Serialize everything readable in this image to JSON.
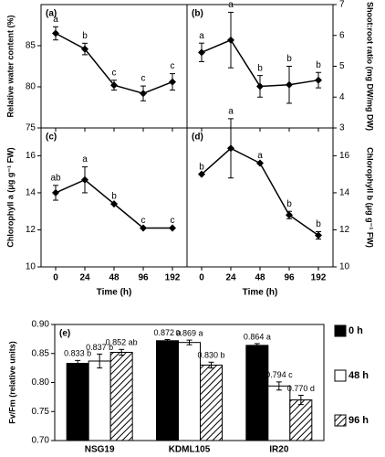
{
  "chart_data": [
    {
      "type": "line",
      "panel": "(a)",
      "y_label": "Relative water content (%)",
      "values": [
        86.5,
        84.6,
        80.2,
        79.2,
        80.6
      ],
      "errors": [
        0.8,
        0.7,
        0.6,
        0.9,
        1.0
      ],
      "letters": [
        "a",
        "b",
        "c",
        "c",
        "c"
      ],
      "ylim": [
        75,
        90
      ],
      "yticks": [
        75,
        80,
        85
      ],
      "axis_side": "left",
      "color": "#000000"
    },
    {
      "type": "line",
      "panel": "(b)",
      "y_label": "Shoot:root ratio (mg DW/mg DW)",
      "values": [
        5.45,
        5.85,
        4.35,
        4.4,
        4.55
      ],
      "errors": [
        0.3,
        0.9,
        0.35,
        0.6,
        0.25
      ],
      "letters": [
        "a",
        "a",
        "b",
        "b",
        "b"
      ],
      "ylim": [
        3,
        7
      ],
      "yticks": [
        3,
        4,
        5,
        6,
        7
      ],
      "axis_side": "right",
      "color": "#000000"
    },
    {
      "type": "line",
      "panel": "(c)",
      "y_label": "Chlorophyll a (μg g⁻¹ FW)",
      "x_label": "Time (h)",
      "categories": [
        "0",
        "24",
        "48",
        "96",
        "192"
      ],
      "values": [
        14.0,
        14.7,
        13.4,
        12.1,
        12.1
      ],
      "errors": [
        0.4,
        0.7,
        0,
        0,
        0
      ],
      "letters": [
        "ab",
        "a",
        "b",
        "c",
        "c"
      ],
      "ylim": [
        10,
        17.5
      ],
      "yticks": [
        10,
        12,
        14,
        16
      ],
      "axis_side": "left",
      "color": "#000000"
    },
    {
      "type": "line",
      "panel": "(d)",
      "y_label": "Chlorophyll b (μg g⁻¹ FW)",
      "x_label": "Time (h)",
      "categories": [
        "0",
        "24",
        "48",
        "96",
        "192"
      ],
      "values": [
        15.0,
        16.4,
        15.6,
        12.8,
        11.7
      ],
      "errors": [
        0,
        1.6,
        0,
        0.2,
        0.2
      ],
      "letters": [
        "b",
        "a",
        "a",
        "b",
        "b"
      ],
      "ylim": [
        10,
        17.5
      ],
      "yticks": [
        10,
        12,
        14,
        16
      ],
      "axis_side": "right",
      "color": "#000000"
    },
    {
      "type": "bar",
      "panel": "(e)",
      "y_label": "Fv/Fm (relative units)",
      "categories": [
        "NSG19",
        "KDML105",
        "IR20"
      ],
      "ylim": [
        0.7,
        0.9
      ],
      "yticks": [
        {
          "value": 0.7,
          "label": "0.70"
        },
        {
          "value": 0.75,
          "label": "0.75"
        },
        {
          "value": 0.8,
          "label": "0.80"
        },
        {
          "value": 0.85,
          "label": "0.85"
        },
        {
          "value": 0.9,
          "label": "0.90"
        }
      ],
      "series": [
        {
          "name": "0 h",
          "color": "#000000",
          "values": [
            0.833,
            0.872,
            0.864
          ],
          "errors": [
            0.005,
            0.002,
            0.003
          ],
          "value_labels": [
            "0.833 b",
            "0.872 a",
            "0.864 a"
          ]
        },
        {
          "name": "48 h",
          "color": "#ffffff",
          "values": [
            0.837,
            0.869,
            0.794
          ],
          "errors": [
            0.012,
            0.004,
            0.007
          ],
          "value_labels": [
            "0.837 b",
            "0.869 a",
            "0.794 c"
          ]
        },
        {
          "name": "96 h",
          "color": "#ffffff",
          "pattern": "hatch",
          "values": [
            0.852,
            0.83,
            0.77
          ],
          "errors": [
            0.005,
            0.005,
            0.008
          ],
          "value_labels": [
            "0.852 ab",
            "0.830 b",
            "0.770 d"
          ]
        }
      ]
    }
  ]
}
